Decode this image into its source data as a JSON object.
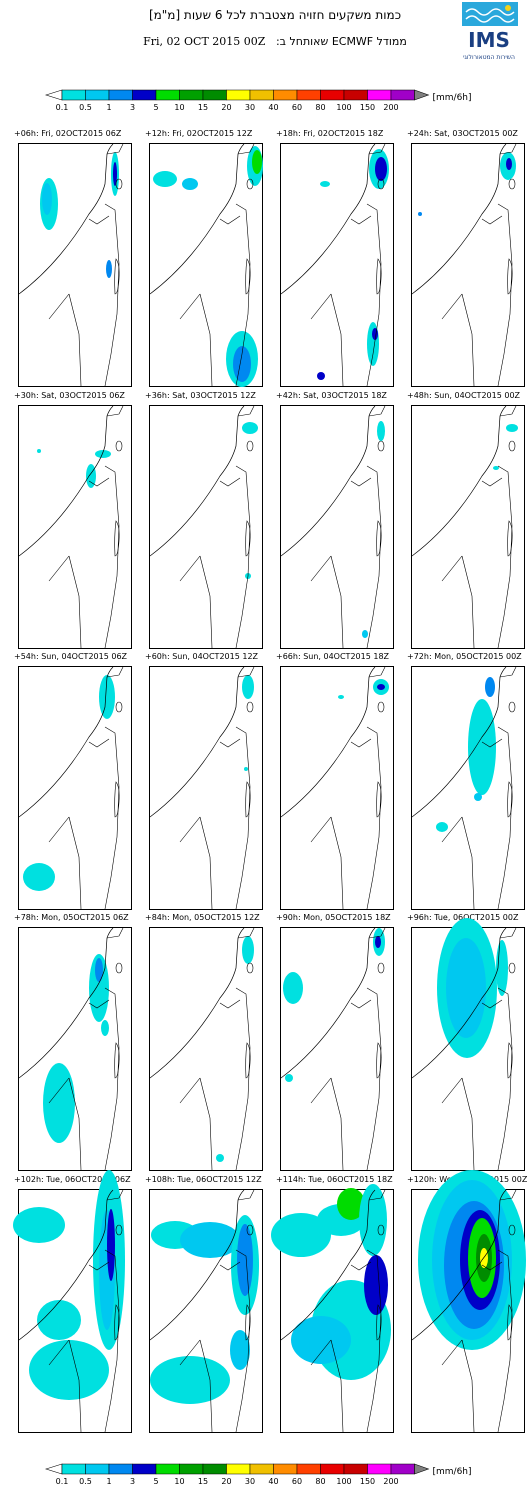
{
  "header": {
    "title_hebrew": "כמות משקעים חזויה מצטברת לכל 6 שעות [מ\"מ]",
    "run_date": "Fri, 02 OCT 2015 00Z",
    "run_label": "ממודל ECMWF שאותחל ב:",
    "logo_text": "IMS",
    "logo_subtitle": "השירות המטאורולוגי",
    "logo_color": "#1a3f82"
  },
  "colorbar": {
    "labels": [
      "0.1",
      "0.5",
      "1",
      "3",
      "5",
      "10",
      "15",
      "20",
      "30",
      "40",
      "60",
      "80",
      "100",
      "150",
      "200"
    ],
    "colors": [
      "#00e0e0",
      "#00c8f0",
      "#0088f0",
      "#0000c8",
      "#00dc00",
      "#00a000",
      "#008c00",
      "#ffff00",
      "#f0c000",
      "#ff8c00",
      "#ff4000",
      "#e80000",
      "#c80000",
      "#ff00ff",
      "#a000c8",
      "#808080"
    ],
    "unit": "[mm/6h]"
  },
  "chart_data": {
    "type": "heatmap",
    "title": "כמות משקעים חזויה מצטברת לכל 6 שעות [מ\"מ]",
    "levels": [
      0.1,
      0.5,
      1,
      3,
      5,
      10,
      15,
      20,
      30,
      40,
      60,
      80,
      100,
      150,
      200
    ],
    "unit": "mm/6h",
    "panels": [
      {
        "label": "+06h: Fri, 02OCT2015 06Z",
        "max_level": "3"
      },
      {
        "label": "+12h: Fri, 02OCT2015 12Z",
        "max_level": "5"
      },
      {
        "label": "+18h: Fri, 02OCT2015 18Z",
        "max_level": "3"
      },
      {
        "label": "+24h: Sat, 03OCT2015 00Z",
        "max_level": "3"
      },
      {
        "label": "+30h: Sat, 03OCT2015 06Z",
        "max_level": "1"
      },
      {
        "label": "+36h: Sat, 03OCT2015 12Z",
        "max_level": "1"
      },
      {
        "label": "+42h: Sat, 03OCT2015 18Z",
        "max_level": "1"
      },
      {
        "label": "+48h: Sun, 04OCT2015 00Z",
        "max_level": "0.5"
      },
      {
        "label": "+54h: Sun, 04OCT2015 06Z",
        "max_level": "0.5"
      },
      {
        "label": "+60h: Sun, 04OCT2015 12Z",
        "max_level": "0.5"
      },
      {
        "label": "+66h: Sun, 04OCT2015 18Z",
        "max_level": "1"
      },
      {
        "label": "+72h: Mon, 05OCT2015 00Z",
        "max_level": "1"
      },
      {
        "label": "+78h: Mon, 05OCT2015 06Z",
        "max_level": "1"
      },
      {
        "label": "+84h: Mon, 05OCT2015 12Z",
        "max_level": "1"
      },
      {
        "label": "+90h: Mon, 05OCT2015 18Z",
        "max_level": "3"
      },
      {
        "label": "+96h: Tue, 06OCT2015 00Z",
        "max_level": "1"
      },
      {
        "label": "+102h: Tue, 06OCT2015 06Z",
        "max_level": "3"
      },
      {
        "label": "+108h: Tue, 06OCT2015 12Z",
        "max_level": "3"
      },
      {
        "label": "+114h: Tue, 06OCT2015 18Z",
        "max_level": "10"
      },
      {
        "label": "+120h: Wed, 07OCT2015 00Z",
        "max_level": "30"
      }
    ]
  }
}
